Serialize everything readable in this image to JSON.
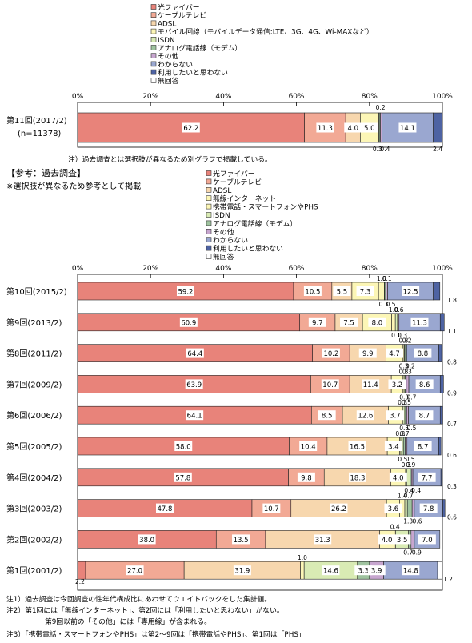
{
  "colors": {
    "hikari": "#E8837A",
    "catv": "#F2A995",
    "adsl": "#F7D7AE",
    "mobile": "#FCF6B6",
    "isdn": "#D9EBB4",
    "analog": "#9FC39F",
    "other": "#C7A6CF",
    "unknown": "#9AA7D0",
    "nointent": "#4E63A3",
    "noanswer": "#FFFFFF"
  },
  "legend_current": [
    "光ファイバー",
    "ケーブルテレビ",
    "ADSL",
    "モバイル回線（モバイルデータ通信:LTE、3G、4G、Wi-MAXなど）",
    "ISDN",
    "アナログ電話線（モデム）",
    "その他",
    "わからない",
    "利用したいと思わない",
    "無回答"
  ],
  "legend_past": [
    "光ファイバー",
    "ケーブルテレビ",
    "ADSL",
    "無線インターネット",
    "携帯電話・スマートフォンやPHS",
    "ISDN",
    "アナログ電話線（モデム）",
    "その他",
    "わからない",
    "利用したいと思わない",
    "無回答"
  ],
  "axis_ticks": [
    "0%",
    "20%",
    "40%",
    "60%",
    "80%",
    "100%"
  ],
  "note_top": "注）過去調査とは選択肢が異なるため別グラフで掲載している。",
  "past_heading": "【参考：過去調査】",
  "past_subheading": "※選択肢が異なるため参考として掲載",
  "footnotes": [
    "注1）過去調査は今回調査の性年代構成比にあわせてウエイトバックをした集計値。",
    "注2）第1回には「無線インターネット」、第2回には「利用したいと思わない」がない。",
    "第9回以前の「その他」には「専用線」が含まれる。",
    "注3）「携帯電話・スマートフォンやPHS」は第2～9回は「携帯電話やPHS」、第1回は「PHS」"
  ],
  "chart_data": [
    {
      "type": "bar",
      "orientation": "horizontal",
      "stacked": true,
      "xlim": [
        0,
        100
      ],
      "categories": [
        "第11回(2017/2)"
      ],
      "category_sublabels": [
        "(n=11378)"
      ],
      "series": [
        {
          "name": "光ファイバー",
          "color_key": "hikari",
          "values": [
            62.2
          ]
        },
        {
          "name": "ケーブルテレビ",
          "color_key": "catv",
          "values": [
            11.3
          ]
        },
        {
          "name": "ADSL",
          "color_key": "adsl",
          "values": [
            4.0
          ]
        },
        {
          "name": "モバイル回線（モバイルデータ通信:LTE、3G、4G、Wi-MAXなど）",
          "color_key": "mobile",
          "values": [
            5.0
          ]
        },
        {
          "name": "ISDN",
          "color_key": "isdn",
          "values": [
            0.2
          ]
        },
        {
          "name": "アナログ電話線（モデム）",
          "color_key": "analog",
          "values": [
            0.3
          ]
        },
        {
          "name": "その他",
          "color_key": "other",
          "values": [
            0.4
          ]
        },
        {
          "name": "わからない",
          "color_key": "unknown",
          "values": [
            14.1
          ]
        },
        {
          "name": "利用したいと思わない",
          "color_key": "nointent",
          "values": [
            2.4
          ]
        },
        {
          "name": "無回答",
          "color_key": "noanswer",
          "values": [
            0.0
          ]
        }
      ]
    },
    {
      "type": "bar",
      "orientation": "horizontal",
      "stacked": true,
      "xlim": [
        0,
        100
      ],
      "categories": [
        "第10回(2015/2)",
        "第9回(2013/2)",
        "第8回(2011/2)",
        "第7回(2009/2)",
        "第6回(2006/2)",
        "第5回(2005/2)",
        "第4回(2004/2)",
        "第3回(2003/2)",
        "第2回(2002/2)",
        "第1回(2001/2)"
      ],
      "series": [
        {
          "name": "光ファイバー",
          "color_key": "hikari",
          "values": [
            59.2,
            60.9,
            64.4,
            63.9,
            64.1,
            58.0,
            57.8,
            47.8,
            38.0,
            2.2
          ]
        },
        {
          "name": "ケーブルテレビ",
          "color_key": "catv",
          "values": [
            10.5,
            9.7,
            10.2,
            10.7,
            8.5,
            10.4,
            9.8,
            10.7,
            13.5,
            27.0
          ]
        },
        {
          "name": "ADSL",
          "color_key": "adsl",
          "values": [
            5.5,
            7.5,
            9.9,
            11.4,
            12.6,
            16.5,
            18.3,
            26.2,
            31.3,
            31.9
          ]
        },
        {
          "name": "無線インターネット",
          "color_key": "mobile",
          "values": [
            7.3,
            8.0,
            4.7,
            3.2,
            3.7,
            3.4,
            4.0,
            3.6,
            4.0,
            0.0
          ]
        },
        {
          "name": "携帯電話・スマートフォンやPHS",
          "color_key": "mobile",
          "values": [
            1.6,
            1.0,
            0.3,
            0.3,
            0.3,
            0.3,
            0.3,
            1.4,
            0.4,
            1.0
          ]
        },
        {
          "name": "ISDN",
          "color_key": "isdn",
          "values": [
            0.1,
            0.6,
            0.2,
            0.3,
            0.5,
            0.7,
            0.9,
            0.7,
            3.5,
            14.6
          ]
        },
        {
          "name": "アナログ電話線（モデム）",
          "color_key": "analog",
          "values": [
            0.3,
            0.1,
            0.3,
            0.3,
            0.5,
            0.5,
            0.4,
            1.3,
            0.7,
            3.3
          ]
        },
        {
          "name": "その他",
          "color_key": "other",
          "values": [
            0.5,
            0.3,
            0.2,
            0.7,
            0.5,
            0.5,
            0.4,
            0.6,
            0.9,
            3.9
          ]
        },
        {
          "name": "わからない",
          "color_key": "unknown",
          "values": [
            12.5,
            11.3,
            8.8,
            8.6,
            8.7,
            8.7,
            7.7,
            7.8,
            7.0,
            14.8
          ]
        },
        {
          "name": "利用したいと思わない",
          "color_key": "nointent",
          "values": [
            1.8,
            1.1,
            0.8,
            0.9,
            0.7,
            0.6,
            0.3,
            0.6,
            0.0,
            0.0
          ]
        },
        {
          "name": "無回答",
          "color_key": "noanswer",
          "values": [
            0.0,
            0.0,
            0.0,
            0.0,
            0.0,
            0.0,
            0.0,
            0.0,
            0.0,
            1.2
          ]
        }
      ]
    }
  ]
}
